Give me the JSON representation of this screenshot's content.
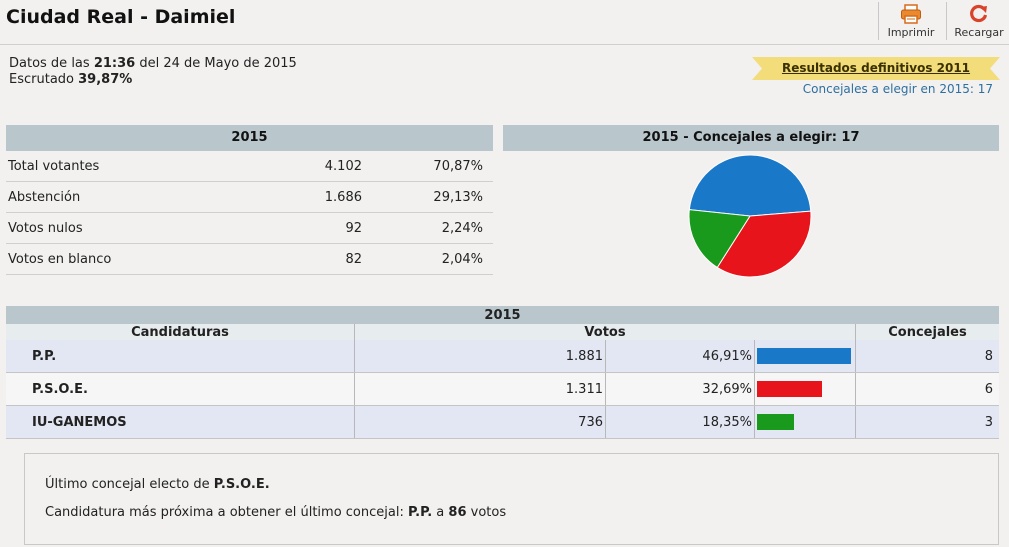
{
  "header": {
    "title": "Ciudad Real - Daimiel",
    "print_label": "Imprimir",
    "reload_label": "Recargar",
    "print_icon": "printer-icon",
    "reload_icon": "reload-icon"
  },
  "info": {
    "datos_prefix": "Datos de las",
    "time": "21:36",
    "date_text": "del 24 de Mayo de 2015",
    "escrutado_label": "Escrutado",
    "escrutado_value": "39,87%",
    "ribbon_link": "Resultados definitivos 2011",
    "concejales_elegir": "Concejales a elegir en 2015: 17"
  },
  "stats": {
    "header": "2015",
    "rows": [
      {
        "label": "Total votantes",
        "value": "4.102",
        "pct": "70,87%"
      },
      {
        "label": "Abstención",
        "value": "1.686",
        "pct": "29,13%"
      },
      {
        "label": "Votos nulos",
        "value": "92",
        "pct": "2,24%"
      },
      {
        "label": "Votos en blanco",
        "value": "82",
        "pct": "2,04%"
      }
    ]
  },
  "pie_header": "2015 - Concejales a elegir: 17",
  "chart_data": {
    "type": "pie",
    "title": "2015 - Concejales a elegir: 17",
    "categories": [
      "P.P.",
      "P.S.O.E.",
      "IU-GANEMOS"
    ],
    "values": [
      8,
      6,
      3
    ],
    "colors": [
      "#1a78c8",
      "#e8141c",
      "#199a1c"
    ]
  },
  "results": {
    "header": "2015",
    "col_candidaturas": "Candidaturas",
    "col_votos": "Votos",
    "col_concejales": "Concejales",
    "rows": [
      {
        "name": "P.P.",
        "votes": "1.881",
        "pct": "46,91%",
        "pct_value": 46.91,
        "concejales": "8",
        "color": "#1a78c8"
      },
      {
        "name": "P.S.O.E.",
        "votes": "1.311",
        "pct": "32,69%",
        "pct_value": 32.69,
        "concejales": "6",
        "color": "#e8141c"
      },
      {
        "name": "IU-GANEMOS",
        "votes": "736",
        "pct": "18,35%",
        "pct_value": 18.35,
        "concejales": "3",
        "color": "#199a1c"
      }
    ]
  },
  "note": {
    "ultimo_prefix": "Último concejal electo de",
    "ultimo_party": "P.S.O.E.",
    "proxima_prefix": "Candidatura más próxima a obtener el último concejal:",
    "proxima_party": "P.P.",
    "proxima_mid": "a",
    "proxima_votes": "86",
    "proxima_suffix": "votos"
  }
}
